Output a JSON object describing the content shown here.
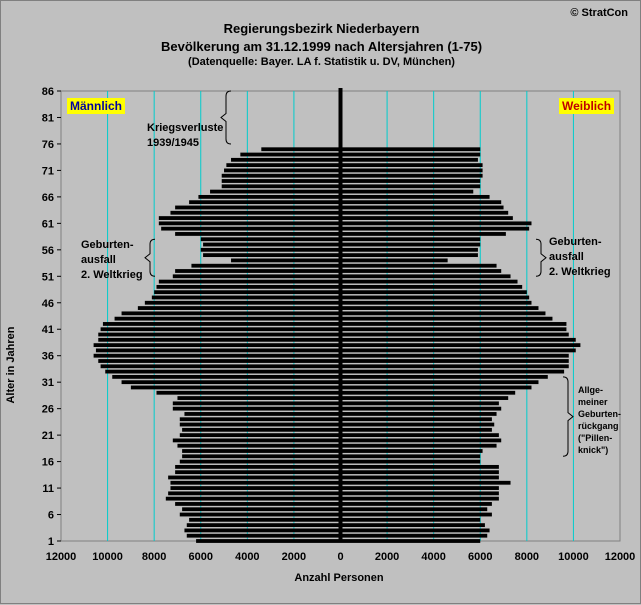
{
  "header": {
    "title_line1": "Regierungsbezirk Niederbayern",
    "title_line2": "Bevölkerung am 31.12.1999 nach Altersjahren (1-75)",
    "title_line3": "(Datenquelle: Bayer. LA f. Statistik u. DV, München)",
    "copyright": "© StratCon"
  },
  "legend": {
    "male": "Männlich",
    "female": "Weiblich"
  },
  "annotations": {
    "war_losses": "Kriegsverluste\n1939/1945",
    "birth_gap_left": "Geburten-\nausfall\n2. Weltkrieg",
    "birth_gap_right": "Geburten-\nausfall\n2. Weltkrieg",
    "birth_decline": "Allge-\nmeiner\nGeburten-\nrückgang\n(\"Pillen-\nknick\")"
  },
  "colors": {
    "background": "#c0c0c0",
    "grid": "#00cccc",
    "bars": "#000000",
    "legend_bg": "#ffff00",
    "male_text": "#0000a0",
    "female_text": "#c00000"
  },
  "chart_data": {
    "type": "bar",
    "orientation": "horizontal",
    "xlabel": "Anzahl Personen",
    "ylabel": "Alter in Jahren",
    "xlim": [
      -12000,
      12000
    ],
    "ylim": [
      1,
      86
    ],
    "xticks": [
      -12000,
      -10000,
      -8000,
      -6000,
      -4000,
      -2000,
      0,
      2000,
      4000,
      6000,
      8000,
      10000,
      12000
    ],
    "xtick_labels": [
      "12000",
      "10000",
      "8000",
      "6000",
      "4000",
      "2000",
      "0",
      "2000",
      "4000",
      "6000",
      "8000",
      "10000",
      "12000"
    ],
    "yticks": [
      1,
      6,
      11,
      16,
      21,
      26,
      31,
      36,
      41,
      46,
      51,
      56,
      61,
      66,
      71,
      76,
      81,
      86
    ],
    "grid": true,
    "categories": [
      1,
      2,
      3,
      4,
      5,
      6,
      7,
      8,
      9,
      10,
      11,
      12,
      13,
      14,
      15,
      16,
      17,
      18,
      19,
      20,
      21,
      22,
      23,
      24,
      25,
      26,
      27,
      28,
      29,
      30,
      31,
      32,
      33,
      34,
      35,
      36,
      37,
      38,
      39,
      40,
      41,
      42,
      43,
      44,
      45,
      46,
      47,
      48,
      49,
      50,
      51,
      52,
      53,
      54,
      55,
      56,
      57,
      58,
      59,
      60,
      61,
      62,
      63,
      64,
      65,
      66,
      67,
      68,
      69,
      70,
      71,
      72,
      73,
      74,
      75
    ],
    "series": [
      {
        "name": "Männlich",
        "values": [
          6200,
          6600,
          6700,
          6600,
          6500,
          6900,
          6800,
          7100,
          7500,
          7400,
          7300,
          7300,
          7400,
          7100,
          7100,
          6900,
          6800,
          6800,
          7000,
          7200,
          6900,
          6800,
          6900,
          6900,
          6700,
          7200,
          7200,
          7000,
          7900,
          9000,
          9400,
          9800,
          10100,
          10300,
          10400,
          10600,
          10500,
          10600,
          10400,
          10400,
          10300,
          10200,
          9700,
          9400,
          8700,
          8400,
          8100,
          8000,
          7900,
          7800,
          7200,
          7100,
          6400,
          4700,
          5900,
          6000,
          5900,
          6000,
          7100,
          7700,
          7800,
          7800,
          7300,
          7100,
          6500,
          6100,
          5600,
          5100,
          5100,
          5100,
          5000,
          4900,
          4700,
          4300,
          3400
        ]
      },
      {
        "name": "Weiblich",
        "values": [
          6000,
          6300,
          6400,
          6200,
          6000,
          6500,
          6300,
          6500,
          6800,
          6800,
          6800,
          7300,
          6800,
          6800,
          6800,
          6000,
          6000,
          6100,
          6700,
          6900,
          6800,
          6500,
          6600,
          6500,
          6700,
          6900,
          6800,
          7200,
          7500,
          8200,
          8500,
          8900,
          9600,
          9800,
          9800,
          9800,
          10100,
          10300,
          10100,
          9800,
          9700,
          9700,
          9100,
          8800,
          8500,
          8200,
          8100,
          8000,
          7800,
          7600,
          7300,
          6900,
          6700,
          4600,
          5900,
          5900,
          6000,
          6000,
          7100,
          8100,
          8200,
          7400,
          7200,
          7000,
          6900,
          6400,
          5700,
          6000,
          6000,
          6100,
          6100,
          6100,
          5900,
          6000,
          6000
        ]
      }
    ]
  }
}
